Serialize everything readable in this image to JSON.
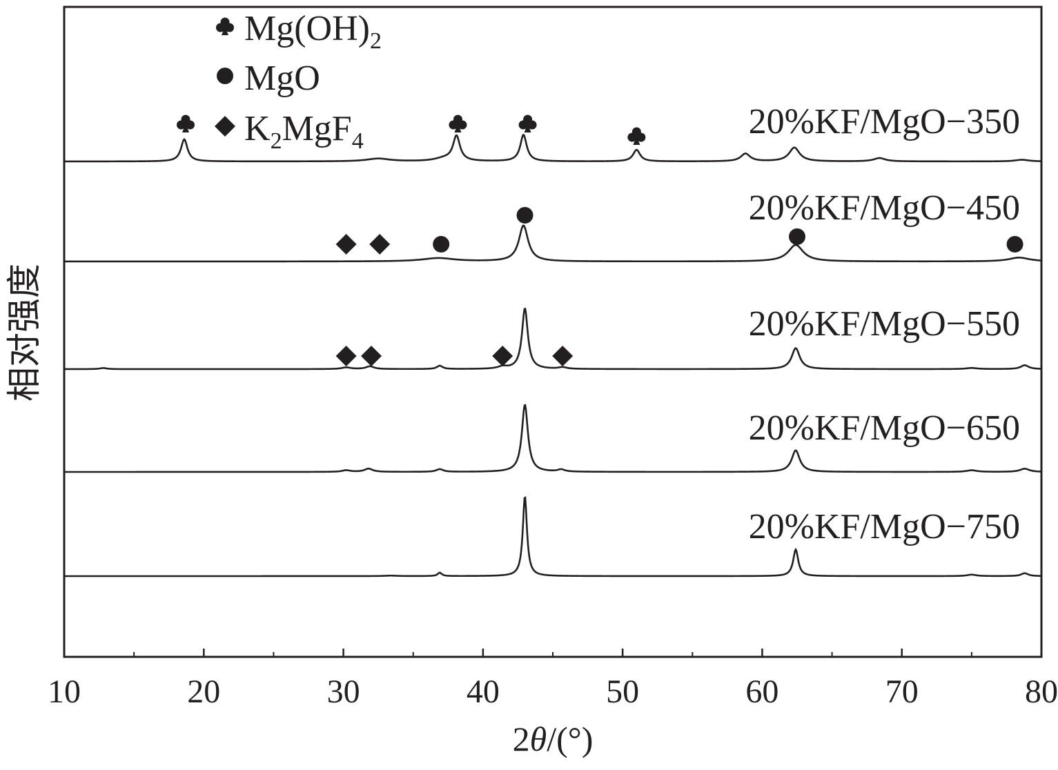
{
  "chart_data": {
    "type": "line",
    "title": "",
    "xlabel": {
      "prefix": "2",
      "var": "θ",
      "suffix": "/(°)"
    },
    "ylabel": "相对强度",
    "xlim": [
      10,
      80
    ],
    "x_ticks": [
      10,
      20,
      30,
      40,
      50,
      60,
      70,
      80
    ],
    "y_ticks": [],
    "grid": false,
    "line_color": "#231f20",
    "legend": {
      "placement": "top-left",
      "entries": [
        {
          "marker": "club",
          "label": "Mg(OH)",
          "sub": "2",
          "tail": ""
        },
        {
          "marker": "circle",
          "label": "MgO",
          "sub": "",
          "tail": ""
        },
        {
          "marker": "diamond",
          "label": "K",
          "sub": "2",
          "tail": "MgF",
          "sub2": "4"
        }
      ]
    },
    "series": [
      {
        "name": "20%KF/MgO−350",
        "peaks": [
          {
            "x": 18.6,
            "h": 0.4,
            "w": 0.28
          },
          {
            "x": 32.5,
            "h": 0.05,
            "w": 1.0
          },
          {
            "x": 37.2,
            "h": 0.05,
            "w": 0.8
          },
          {
            "x": 38.1,
            "h": 0.45,
            "w": 0.3
          },
          {
            "x": 42.9,
            "h": 0.48,
            "w": 0.28
          },
          {
            "x": 51.0,
            "h": 0.21,
            "w": 0.3
          },
          {
            "x": 58.8,
            "h": 0.14,
            "w": 0.4
          },
          {
            "x": 62.3,
            "h": 0.25,
            "w": 0.45
          },
          {
            "x": 68.4,
            "h": 0.06,
            "w": 0.5
          },
          {
            "x": 78.6,
            "h": 0.03,
            "w": 0.6
          }
        ],
        "markers": [
          {
            "type": "club",
            "x": 18.7
          },
          {
            "type": "club",
            "x": 38.2
          },
          {
            "type": "club",
            "x": 43.2
          },
          {
            "type": "club",
            "x": 51.0
          }
        ]
      },
      {
        "name": "20%KF/MgO−450",
        "peaks": [
          {
            "x": 36.8,
            "h": 0.06,
            "w": 1.4
          },
          {
            "x": 42.9,
            "h": 0.65,
            "w": 0.4
          },
          {
            "x": 62.4,
            "h": 0.3,
            "w": 0.65
          },
          {
            "x": 78.4,
            "h": 0.07,
            "w": 0.9
          }
        ],
        "markers": [
          {
            "type": "diamond",
            "x": 30.2
          },
          {
            "type": "diamond",
            "x": 32.6
          },
          {
            "type": "circle",
            "x": 37.0
          },
          {
            "type": "circle",
            "x": 43.0
          },
          {
            "type": "circle",
            "x": 62.5
          },
          {
            "type": "circle",
            "x": 78.1
          }
        ]
      },
      {
        "name": "20%KF/MgO−550",
        "peaks": [
          {
            "x": 12.8,
            "h": 0.02,
            "w": 0.3
          },
          {
            "x": 30.2,
            "h": 0.03,
            "w": 0.4
          },
          {
            "x": 31.9,
            "h": 0.05,
            "w": 0.35
          },
          {
            "x": 36.9,
            "h": 0.06,
            "w": 0.25
          },
          {
            "x": 41.4,
            "h": 0.04,
            "w": 0.4
          },
          {
            "x": 43.0,
            "h": 1.1,
            "w": 0.25
          },
          {
            "x": 45.7,
            "h": 0.03,
            "w": 0.35
          },
          {
            "x": 62.4,
            "h": 0.38,
            "w": 0.35
          },
          {
            "x": 75.0,
            "h": 0.02,
            "w": 0.5
          },
          {
            "x": 78.8,
            "h": 0.07,
            "w": 0.35
          }
        ],
        "markers": [
          {
            "type": "diamond",
            "x": 30.2
          },
          {
            "type": "diamond",
            "x": 32.0
          },
          {
            "type": "diamond",
            "x": 41.4
          },
          {
            "type": "diamond",
            "x": 45.7
          }
        ]
      },
      {
        "name": "20%KF/MgO−650",
        "peaks": [
          {
            "x": 30.2,
            "h": 0.03,
            "w": 0.35
          },
          {
            "x": 31.8,
            "h": 0.06,
            "w": 0.35
          },
          {
            "x": 36.9,
            "h": 0.05,
            "w": 0.3
          },
          {
            "x": 43.0,
            "h": 1.25,
            "w": 0.26
          },
          {
            "x": 45.6,
            "h": 0.04,
            "w": 0.3
          },
          {
            "x": 62.4,
            "h": 0.4,
            "w": 0.35
          },
          {
            "x": 75.0,
            "h": 0.03,
            "w": 0.45
          },
          {
            "x": 78.8,
            "h": 0.06,
            "w": 0.4
          }
        ],
        "markers": []
      },
      {
        "name": "20%KF/MgO−750",
        "peaks": [
          {
            "x": 33.4,
            "h": 0.01,
            "w": 0.5
          },
          {
            "x": 36.9,
            "h": 0.07,
            "w": 0.18
          },
          {
            "x": 43.0,
            "h": 1.65,
            "w": 0.18
          },
          {
            "x": 62.4,
            "h": 0.55,
            "w": 0.22
          },
          {
            "x": 75.0,
            "h": 0.03,
            "w": 0.4
          },
          {
            "x": 78.8,
            "h": 0.06,
            "w": 0.3
          }
        ],
        "markers": []
      }
    ]
  }
}
